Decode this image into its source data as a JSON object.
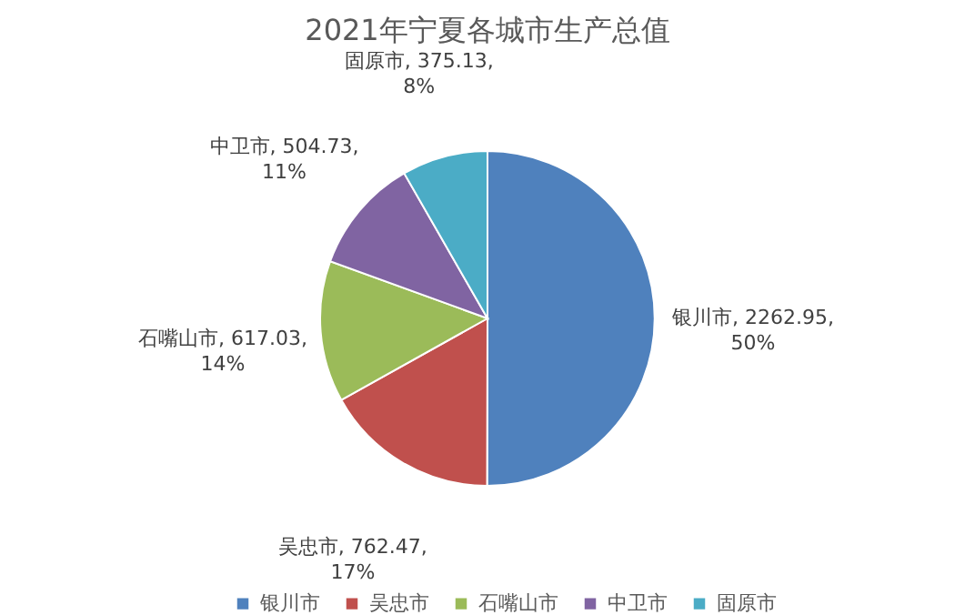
{
  "chart_data": {
    "type": "pie",
    "title": "2021年宁夏各城市生产总值",
    "categories": [
      "银川市",
      "吴忠市",
      "石嘴山市",
      "中卫市",
      "固原市"
    ],
    "values": [
      2262.95,
      762.47,
      617.03,
      504.73,
      375.13
    ],
    "value_labels": [
      "银川市, 2262.95, 50%",
      "吴忠市, 762.47, 17%",
      "石嘴山市, 617.03, 14%",
      "中卫市, 504.73, 11%",
      "固原市, 375.13, 8%"
    ],
    "colors": [
      "#4f81bd",
      "#c0504d",
      "#9bbb59",
      "#8064a2",
      "#4bacc6"
    ],
    "legend": "bottom"
  }
}
